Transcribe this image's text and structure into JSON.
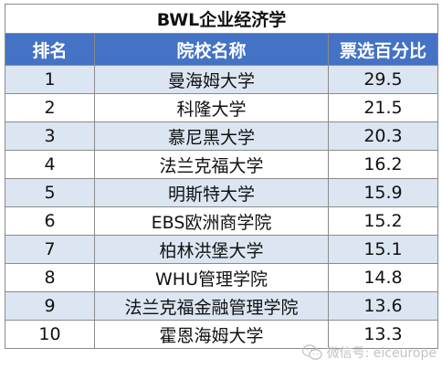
{
  "table": {
    "title": "BWL企业经济学",
    "headers": {
      "rank": "排名",
      "school": "院校名称",
      "percent": "票选百分比"
    },
    "rows": [
      {
        "rank": "1",
        "school": "曼海姆大学",
        "percent": "29.5"
      },
      {
        "rank": "2",
        "school": "科隆大学",
        "percent": "21.5"
      },
      {
        "rank": "3",
        "school": "慕尼黑大学",
        "percent": "20.3"
      },
      {
        "rank": "4",
        "school": "法兰克福大学",
        "percent": "16.2"
      },
      {
        "rank": "5",
        "school": "明斯特大学",
        "percent": "15.9"
      },
      {
        "rank": "6",
        "school": "EBS欧洲商学院",
        "percent": "15.2"
      },
      {
        "rank": "7",
        "school": "柏林洪堡大学",
        "percent": "15.1"
      },
      {
        "rank": "8",
        "school": "WHU管理学院",
        "percent": "14.8"
      },
      {
        "rank": "9",
        "school": "法兰克福金融管理学院",
        "percent": "13.6"
      },
      {
        "rank": "10",
        "school": "霍恩海姆大学",
        "percent": "13.3"
      }
    ]
  },
  "watermark": {
    "text": "微信号: eiceurope",
    "icon": "wechat-icon"
  },
  "colors": {
    "header_bg": "#4472c4",
    "stripe_bg": "#dce6f2"
  }
}
